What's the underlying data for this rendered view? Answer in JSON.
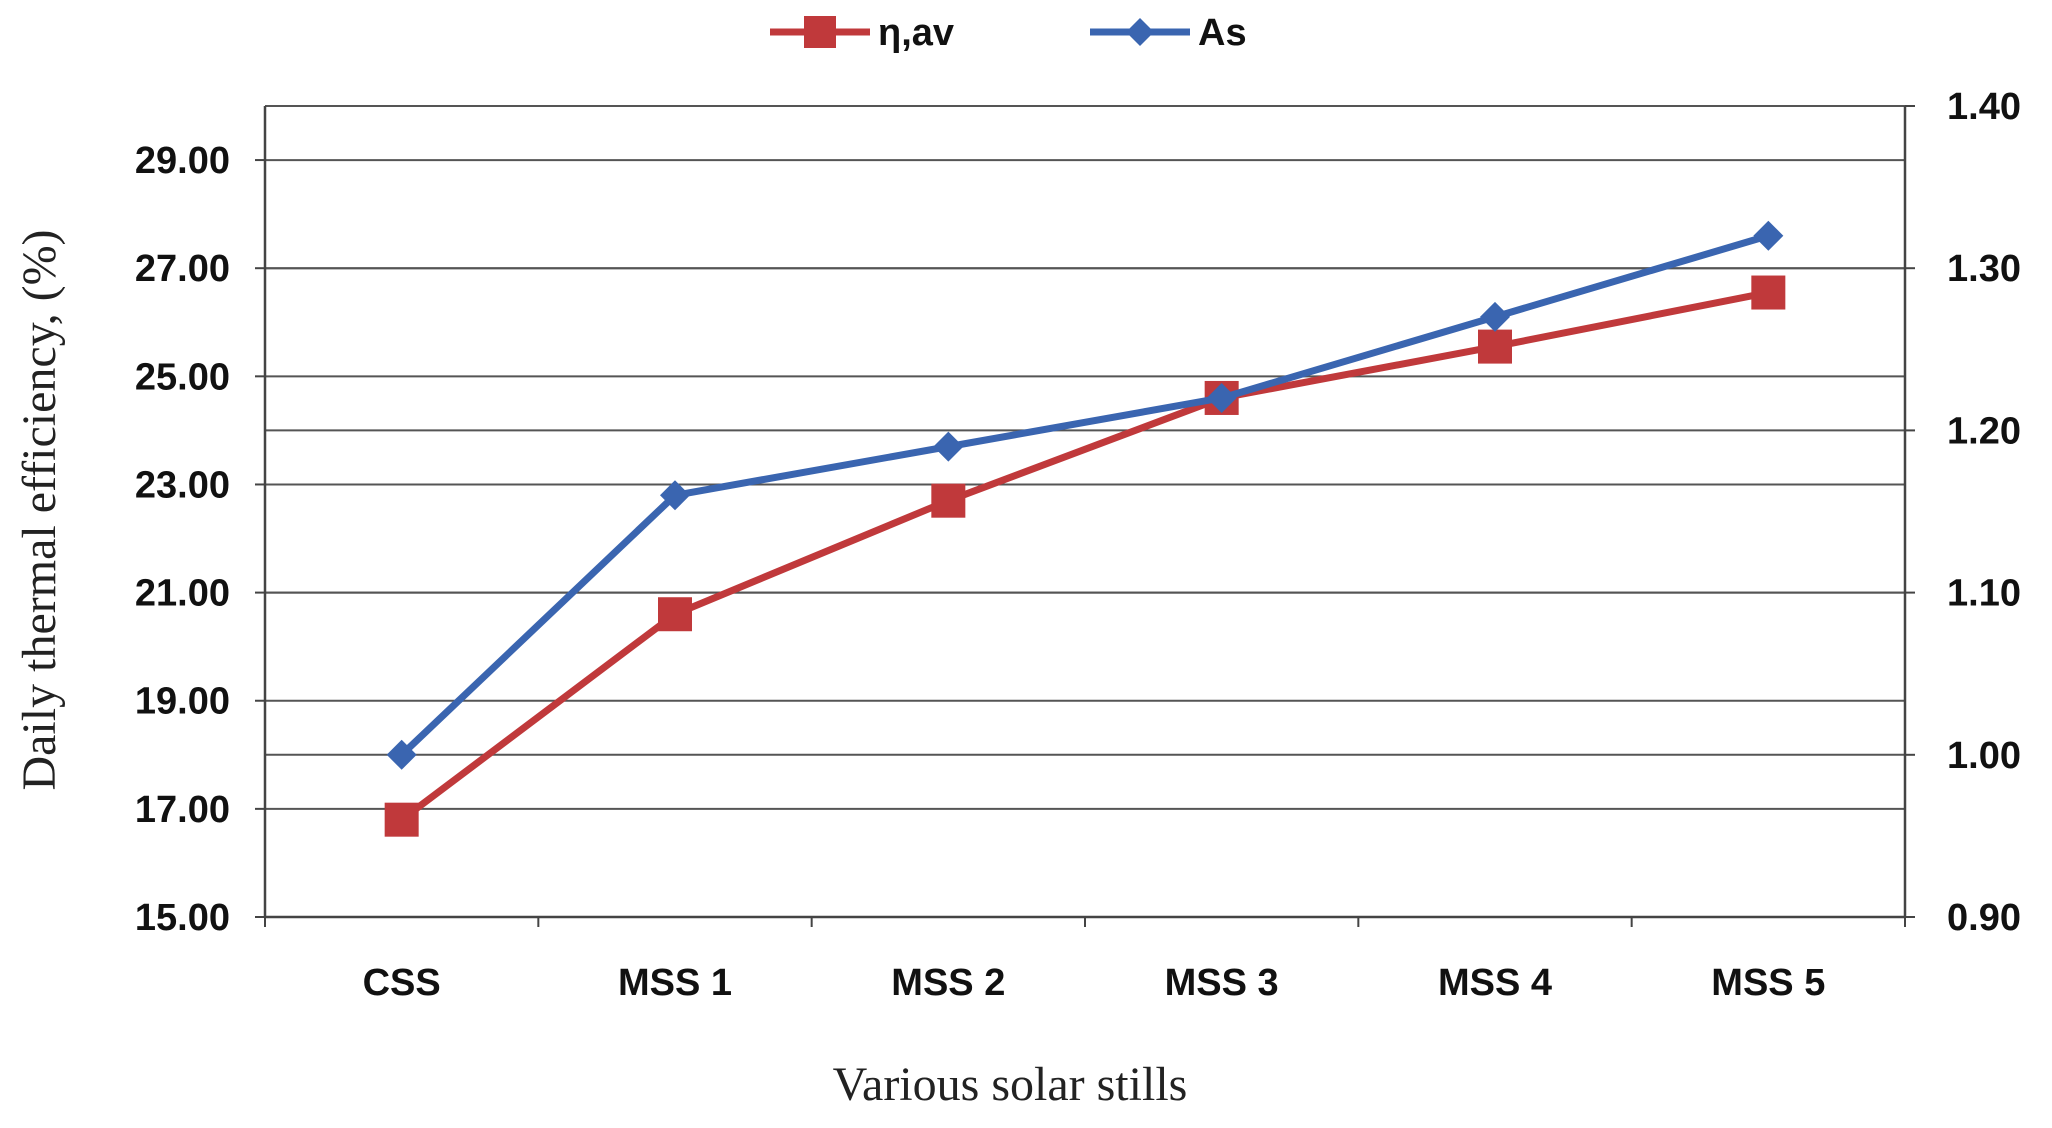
{
  "chart_data": {
    "type": "line",
    "categories": [
      "CSS",
      "MSS 1",
      "MSS 2",
      "MSS 3",
      "MSS 4",
      "MSS 5"
    ],
    "xlabel": "Various solar stills",
    "ylabel": "Daily thermal efficiency, (%)",
    "y_left": {
      "ylim": [
        15.0,
        30.0
      ],
      "ticks": [
        "15.00",
        "17.00",
        "19.00",
        "21.00",
        "23.00",
        "25.00",
        "27.00",
        "29.00"
      ],
      "tick_values": [
        15,
        17,
        19,
        21,
        23,
        25,
        27,
        29
      ]
    },
    "y_right": {
      "ylim": [
        0.9,
        1.4
      ],
      "ticks": [
        "0.90",
        "1.00",
        "1.10",
        "1.20",
        "1.30",
        "1.40"
      ],
      "tick_values": [
        0.9,
        1.0,
        1.1,
        1.2,
        1.3,
        1.4
      ]
    },
    "series": [
      {
        "name": "η,av",
        "axis": "left",
        "color": "#c0393b",
        "marker": "square",
        "values": [
          16.8,
          20.6,
          22.7,
          24.6,
          25.55,
          26.55
        ]
      },
      {
        "name": "As",
        "axis": "right",
        "color": "#3a65b0",
        "marker": "diamond",
        "values": [
          1.0,
          1.16,
          1.19,
          1.22,
          1.27,
          1.32
        ]
      }
    ],
    "grid": true,
    "legend_position": "top-center"
  }
}
